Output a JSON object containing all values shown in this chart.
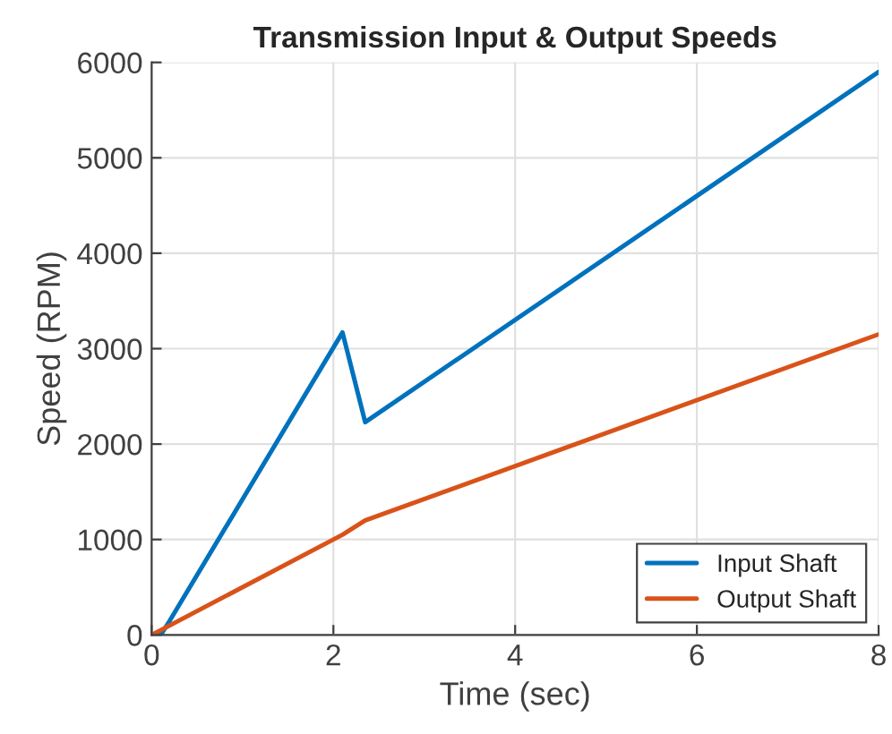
{
  "chart_data": {
    "type": "line",
    "title": "Transmission Input & Output Speeds",
    "xlabel": "Time (sec)",
    "ylabel": "Speed (RPM)",
    "series": [
      {
        "name": "Input Shaft",
        "color": "#0072bd",
        "x": [
          0,
          0.1,
          0.2,
          2.1,
          2.35,
          8
        ],
        "values": [
          0,
          0,
          150,
          3170,
          2230,
          5900
        ]
      },
      {
        "name": "Output Shaft",
        "color": "#d95319",
        "x": [
          0,
          2.1,
          2.35,
          8
        ],
        "values": [
          0,
          1050,
          1200,
          3150
        ]
      }
    ],
    "xlim": [
      0,
      8
    ],
    "xticks": [
      0,
      2,
      4,
      6,
      8
    ],
    "ylim": [
      0,
      6000
    ],
    "yticks": [
      0,
      1000,
      2000,
      3000,
      4000,
      5000,
      6000
    ],
    "grid": true,
    "legend": "bottom right",
    "line_style": "solid",
    "marker": "none"
  }
}
